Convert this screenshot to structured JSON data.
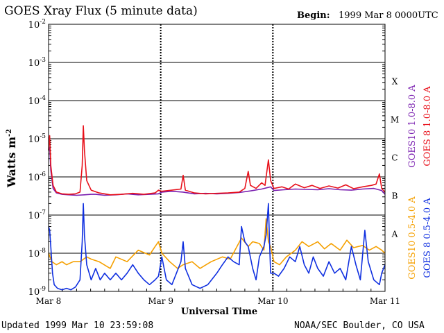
{
  "header": {
    "title": "GOES Xray Flux (5 minute data)",
    "begin_label": "Begin:",
    "begin_value": "1999 Mar 8 0000UTC"
  },
  "footer": {
    "updated": "Updated 1999 Mar 10 23:59:08",
    "credit": "NOAA/SEC Boulder, CO USA"
  },
  "chart_data": {
    "type": "line",
    "title": "GOES Xray Flux (5 minute data)",
    "xlabel": "Universal Time",
    "ylabel": "Watts m",
    "ylabel_superscript": "-2",
    "y_scale": "log",
    "ylim": [
      1e-09,
      0.01
    ],
    "y_ticks": [
      {
        "base": "10",
        "exp": "-9"
      },
      {
        "base": "10",
        "exp": "-8"
      },
      {
        "base": "10",
        "exp": "-7"
      },
      {
        "base": "10",
        "exp": "-6"
      },
      {
        "base": "10",
        "exp": "-5"
      },
      {
        "base": "10",
        "exp": "-4"
      },
      {
        "base": "10",
        "exp": "-3"
      },
      {
        "base": "10",
        "exp": "-2"
      }
    ],
    "x_ticks": [
      "Mar 8",
      "Mar 9",
      "Mar 10",
      "Mar 11"
    ],
    "x_range_days": [
      0,
      3
    ],
    "flare_classes": [
      {
        "label": "A",
        "level": 1e-08
      },
      {
        "label": "B",
        "level": 1e-07
      },
      {
        "label": "C",
        "level": 1e-06
      },
      {
        "label": "M",
        "level": 1e-05
      },
      {
        "label": "X",
        "level": 0.0001
      }
    ],
    "grid_lines": [
      1e-08,
      1e-07,
      1e-06,
      1e-05,
      0.0001,
      0.001
    ],
    "legend_position": "right",
    "series": [
      {
        "name": "GOES10 1.0-8.0 A",
        "color": "#7a1fb0",
        "points": [
          [
            0.0,
            5e-06
          ],
          [
            0.01,
            6e-06
          ],
          [
            0.02,
            1.5e-06
          ],
          [
            0.04,
            5e-07
          ],
          [
            0.07,
            3.8e-07
          ],
          [
            0.12,
            3.5e-07
          ],
          [
            0.18,
            3.4e-07
          ],
          [
            0.25,
            3.3e-07
          ],
          [
            0.32,
            3.4e-07
          ],
          [
            0.38,
            3.5e-07
          ],
          [
            0.42,
            3.5e-07
          ],
          [
            0.5,
            3.3e-07
          ],
          [
            0.6,
            3.4e-07
          ],
          [
            0.7,
            3.6e-07
          ],
          [
            0.8,
            3.4e-07
          ],
          [
            0.9,
            3.5e-07
          ],
          [
            0.98,
            3.6e-07
          ],
          [
            1.01,
            4e-07
          ],
          [
            1.1,
            4.2e-07
          ],
          [
            1.2,
            4e-07
          ],
          [
            1.3,
            3.6e-07
          ],
          [
            1.4,
            3.7e-07
          ],
          [
            1.5,
            3.6e-07
          ],
          [
            1.6,
            3.7e-07
          ],
          [
            1.7,
            3.9e-07
          ],
          [
            1.8,
            4.3e-07
          ],
          [
            1.9,
            4.8e-07
          ],
          [
            1.98,
            5.5e-07
          ],
          [
            2.01,
            4.4e-07
          ],
          [
            2.1,
            4.6e-07
          ],
          [
            2.2,
            4.8e-07
          ],
          [
            2.3,
            4.7e-07
          ],
          [
            2.4,
            4.6e-07
          ],
          [
            2.5,
            4.9e-07
          ],
          [
            2.6,
            4.6e-07
          ],
          [
            2.7,
            4.5e-07
          ],
          [
            2.8,
            4.8e-07
          ],
          [
            2.9,
            5e-07
          ],
          [
            2.97,
            4.4e-07
          ],
          [
            3.0,
            3.5e-07
          ]
        ]
      },
      {
        "name": "GOES 8 1.0-8.0 A",
        "color": "#e8101a",
        "points": [
          [
            0.0,
            5e-06
          ],
          [
            0.005,
            9e-06
          ],
          [
            0.01,
            1.2e-05
          ],
          [
            0.02,
            2e-06
          ],
          [
            0.04,
            6e-07
          ],
          [
            0.07,
            4e-07
          ],
          [
            0.12,
            3.6e-07
          ],
          [
            0.18,
            3.5e-07
          ],
          [
            0.24,
            3.6e-07
          ],
          [
            0.28,
            4e-07
          ],
          [
            0.3,
            2e-06
          ],
          [
            0.31,
            2.2e-05
          ],
          [
            0.32,
            5e-06
          ],
          [
            0.34,
            8e-07
          ],
          [
            0.38,
            4.5e-07
          ],
          [
            0.45,
            3.8e-07
          ],
          [
            0.55,
            3.4e-07
          ],
          [
            0.65,
            3.5e-07
          ],
          [
            0.75,
            3.7e-07
          ],
          [
            0.85,
            3.5e-07
          ],
          [
            0.95,
            3.8e-07
          ],
          [
            0.98,
            4.5e-07
          ],
          [
            1.01,
            4.2e-07
          ],
          [
            1.1,
            4.5e-07
          ],
          [
            1.18,
            4.8e-07
          ],
          [
            1.2,
            1.1e-06
          ],
          [
            1.22,
            4.5e-07
          ],
          [
            1.3,
            3.8e-07
          ],
          [
            1.4,
            3.6e-07
          ],
          [
            1.5,
            3.7e-07
          ],
          [
            1.6,
            3.8e-07
          ],
          [
            1.7,
            4e-07
          ],
          [
            1.75,
            5e-07
          ],
          [
            1.78,
            1.4e-06
          ],
          [
            1.8,
            6e-07
          ],
          [
            1.85,
            5e-07
          ],
          [
            1.9,
            7e-07
          ],
          [
            1.93,
            6e-07
          ],
          [
            1.96,
            2.8e-06
          ],
          [
            1.98,
            8e-07
          ],
          [
            2.01,
            5e-07
          ],
          [
            2.08,
            5.5e-07
          ],
          [
            2.14,
            4.8e-07
          ],
          [
            2.2,
            6.5e-07
          ],
          [
            2.28,
            5.2e-07
          ],
          [
            2.35,
            6e-07
          ],
          [
            2.42,
            5e-07
          ],
          [
            2.5,
            5.8e-07
          ],
          [
            2.58,
            5.1e-07
          ],
          [
            2.65,
            6.2e-07
          ],
          [
            2.72,
            4.9e-07
          ],
          [
            2.8,
            5.5e-07
          ],
          [
            2.88,
            6e-07
          ],
          [
            2.92,
            6.5e-07
          ],
          [
            2.95,
            1.2e-06
          ],
          [
            2.97,
            5e-07
          ],
          [
            3.0,
            4e-07
          ]
        ]
      },
      {
        "name": "GOES10 0.5-4.0 A",
        "color": "#f5a000",
        "points": [
          [
            0.0,
            1e-08
          ],
          [
            0.03,
            6e-09
          ],
          [
            0.07,
            5e-09
          ],
          [
            0.12,
            6e-09
          ],
          [
            0.16,
            5e-09
          ],
          [
            0.22,
            6e-09
          ],
          [
            0.28,
            6e-09
          ],
          [
            0.34,
            8e-09
          ],
          [
            0.38,
            7e-09
          ],
          [
            0.45,
            6e-09
          ],
          [
            0.55,
            4e-09
          ],
          [
            0.6,
            8e-09
          ],
          [
            0.7,
            6e-09
          ],
          [
            0.8,
            1.2e-08
          ],
          [
            0.9,
            9e-09
          ],
          [
            0.95,
            1.5e-08
          ],
          [
            0.98,
            2e-08
          ],
          [
            1.01,
            1e-08
          ],
          [
            1.08,
            6e-09
          ],
          [
            1.15,
            4e-09
          ],
          [
            1.2,
            5e-09
          ],
          [
            1.28,
            6e-09
          ],
          [
            1.35,
            4e-09
          ],
          [
            1.45,
            6e-09
          ],
          [
            1.55,
            8e-09
          ],
          [
            1.62,
            7e-09
          ],
          [
            1.68,
            1.5e-08
          ],
          [
            1.72,
            2.5e-08
          ],
          [
            1.78,
            1.5e-08
          ],
          [
            1.82,
            2e-08
          ],
          [
            1.88,
            1.8e-08
          ],
          [
            1.92,
            1.2e-08
          ],
          [
            1.94,
            8e-08
          ],
          [
            1.96,
            2e-08
          ],
          [
            1.98,
            1.5e-08
          ],
          [
            2.01,
            6e-09
          ],
          [
            2.06,
            5e-09
          ],
          [
            2.12,
            8e-09
          ],
          [
            2.2,
            1.2e-08
          ],
          [
            2.26,
            2e-08
          ],
          [
            2.32,
            1.5e-08
          ],
          [
            2.4,
            2e-08
          ],
          [
            2.46,
            1.3e-08
          ],
          [
            2.52,
            1.8e-08
          ],
          [
            2.6,
            1.2e-08
          ],
          [
            2.66,
            2.2e-08
          ],
          [
            2.72,
            1.4e-08
          ],
          [
            2.8,
            1.6e-08
          ],
          [
            2.86,
            1.2e-08
          ],
          [
            2.92,
            1.5e-08
          ],
          [
            2.97,
            1.2e-08
          ],
          [
            3.0,
            1e-08
          ]
        ]
      },
      {
        "name": "GOES 8 0.5-4.0 A",
        "color": "#1030e0",
        "points": [
          [
            0.0,
            5e-08
          ],
          [
            0.01,
            4e-08
          ],
          [
            0.02,
            1.5e-08
          ],
          [
            0.035,
            3e-09
          ],
          [
            0.05,
            1.5e-09
          ],
          [
            0.08,
            1.2e-09
          ],
          [
            0.12,
            1.1e-09
          ],
          [
            0.16,
            1.2e-09
          ],
          [
            0.2,
            1.1e-09
          ],
          [
            0.24,
            1.3e-09
          ],
          [
            0.28,
            2e-09
          ],
          [
            0.3,
            2e-08
          ],
          [
            0.31,
            2e-07
          ],
          [
            0.32,
            3e-08
          ],
          [
            0.34,
            5e-09
          ],
          [
            0.38,
            2e-09
          ],
          [
            0.42,
            4e-09
          ],
          [
            0.46,
            2e-09
          ],
          [
            0.5,
            3e-09
          ],
          [
            0.55,
            2e-09
          ],
          [
            0.6,
            3e-09
          ],
          [
            0.65,
            2e-09
          ],
          [
            0.7,
            3e-09
          ],
          [
            0.75,
            5e-09
          ],
          [
            0.8,
            3e-09
          ],
          [
            0.85,
            2e-09
          ],
          [
            0.9,
            1.5e-09
          ],
          [
            0.95,
            2e-09
          ],
          [
            0.98,
            2.5e-09
          ],
          [
            1.01,
            8e-09
          ],
          [
            1.05,
            2e-09
          ],
          [
            1.1,
            1.5e-09
          ],
          [
            1.14,
            3e-09
          ],
          [
            1.18,
            6e-09
          ],
          [
            1.2,
            2e-08
          ],
          [
            1.22,
            4e-09
          ],
          [
            1.28,
            1.5e-09
          ],
          [
            1.35,
            1.2e-09
          ],
          [
            1.42,
            1.5e-09
          ],
          [
            1.5,
            3e-09
          ],
          [
            1.55,
            5e-09
          ],
          [
            1.6,
            8e-09
          ],
          [
            1.65,
            6e-09
          ],
          [
            1.7,
            5e-09
          ],
          [
            1.72,
            5e-08
          ],
          [
            1.75,
            2e-08
          ],
          [
            1.78,
            1.5e-08
          ],
          [
            1.82,
            4e-09
          ],
          [
            1.85,
            2e-09
          ],
          [
            1.88,
            8e-09
          ],
          [
            1.92,
            1.5e-08
          ],
          [
            1.94,
            3e-08
          ],
          [
            1.96,
            2e-07
          ],
          [
            1.97,
            2e-08
          ],
          [
            1.98,
            3e-09
          ],
          [
            2.01,
            3e-09
          ],
          [
            2.05,
            2.5e-09
          ],
          [
            2.1,
            4e-09
          ],
          [
            2.15,
            8e-09
          ],
          [
            2.2,
            6e-09
          ],
          [
            2.24,
            1.5e-08
          ],
          [
            2.28,
            5e-09
          ],
          [
            2.32,
            3e-09
          ],
          [
            2.36,
            8e-09
          ],
          [
            2.4,
            4e-09
          ],
          [
            2.45,
            2.5e-09
          ],
          [
            2.5,
            6e-09
          ],
          [
            2.55,
            3e-09
          ],
          [
            2.6,
            4e-09
          ],
          [
            2.65,
            2e-09
          ],
          [
            2.7,
            1.5e-08
          ],
          [
            2.74,
            5e-09
          ],
          [
            2.78,
            2e-09
          ],
          [
            2.82,
            4e-08
          ],
          [
            2.85,
            6e-09
          ],
          [
            2.9,
            2e-09
          ],
          [
            2.95,
            1.5e-09
          ],
          [
            2.97,
            3e-09
          ],
          [
            3.0,
            5e-09
          ]
        ]
      }
    ]
  }
}
